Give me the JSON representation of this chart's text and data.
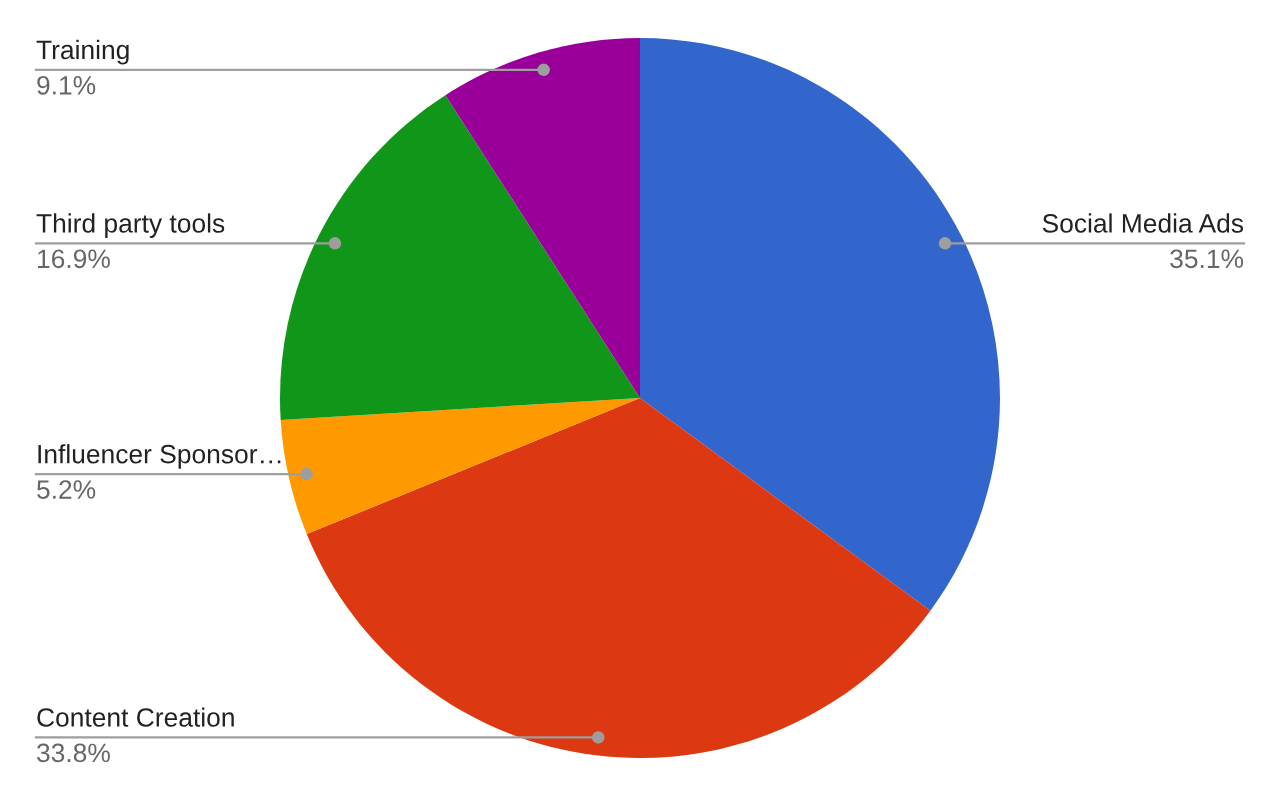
{
  "chart_data": {
    "type": "pie",
    "categories": [
      "Social Media Ads",
      "Content Creation",
      "Influencer Sponsor…",
      "Third party tools",
      "Training"
    ],
    "values": [
      35.1,
      33.8,
      5.2,
      16.9,
      9.1
    ],
    "colors": [
      "#3366cc",
      "#dc3912",
      "#ff9900",
      "#109618",
      "#990099"
    ],
    "value_labels": [
      "35.1%",
      "33.8%",
      "5.2%",
      "16.9%",
      "9.1%"
    ]
  }
}
